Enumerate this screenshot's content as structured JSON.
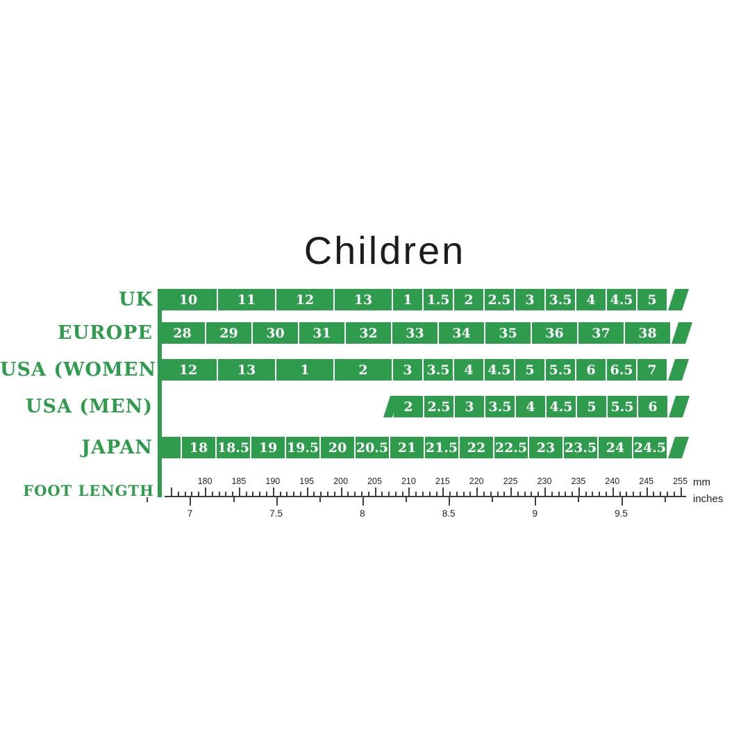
{
  "title": "Children",
  "colors": {
    "green": "#2E9B4D",
    "cell_text": "#ffffff",
    "ruler": "#3d3d3d",
    "title_text": "#1c1c1c"
  },
  "chart_data": {
    "type": "table",
    "title": "Children",
    "rows": [
      {
        "id": "uk",
        "label": "UK",
        "values": [
          "10",
          "11",
          "12",
          "13",
          "1",
          "1.5",
          "2",
          "2.5",
          "3",
          "3.5",
          "4",
          "4.5",
          "5"
        ]
      },
      {
        "id": "europe",
        "label": "EUROPE",
        "values": [
          "28",
          "29",
          "30",
          "31",
          "32",
          "33",
          "34",
          "35",
          "36",
          "37",
          "38"
        ]
      },
      {
        "id": "usa-women",
        "label": "USA (WOMEN)",
        "values": [
          "12",
          "13",
          "1",
          "2",
          "3",
          "3.5",
          "4",
          "4.5",
          "5",
          "5.5",
          "6",
          "6.5",
          "7"
        ]
      },
      {
        "id": "usa-men",
        "label": "USA (MEN)",
        "values": [
          "2",
          "2.5",
          "3",
          "3.5",
          "4",
          "4.5",
          "5",
          "5.5",
          "6"
        ]
      },
      {
        "id": "japan",
        "label": "JAPAN",
        "values": [
          "",
          "18",
          "18.5",
          "19",
          "19.5",
          "20",
          "20.5",
          "21",
          "21.5",
          "22",
          "22.5",
          "23",
          "23.5",
          "24",
          "24.5"
        ]
      }
    ],
    "foot_length": {
      "label": "FOOT LENGTH",
      "mm_tick_labels": [
        "180",
        "185",
        "190",
        "195",
        "200",
        "205",
        "210",
        "215",
        "220",
        "225",
        "230",
        "235",
        "240",
        "245",
        "255"
      ],
      "inch_tick_labels": [
        "7",
        "7.5",
        "8",
        "8.5",
        "9",
        "9.5"
      ],
      "mm_unit": "mm",
      "inch_unit": "inches"
    }
  }
}
